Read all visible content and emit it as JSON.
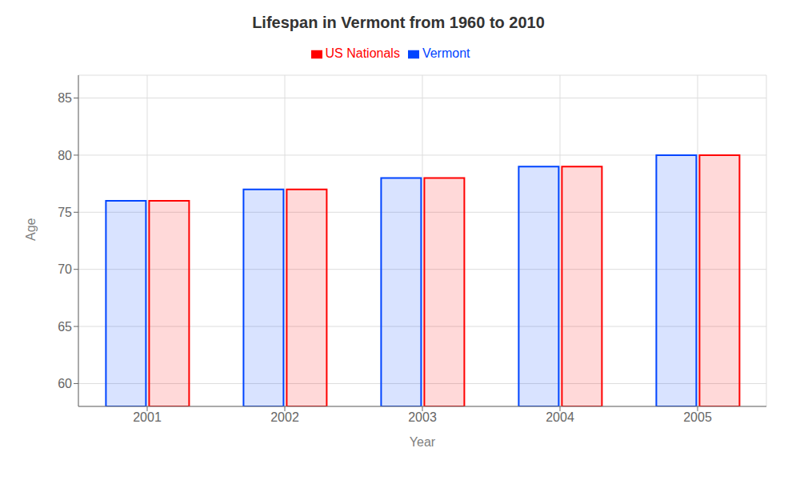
{
  "chart_data": {
    "type": "bar",
    "title": "Lifespan in Vermont from 1960 to 2010",
    "x_label": "Year",
    "y_label": "Age",
    "categories": [
      "2001",
      "2002",
      "2003",
      "2004",
      "2005"
    ],
    "series": [
      {
        "name": "Vermont",
        "color": "#0044ff",
        "values": [
          76,
          77,
          78,
          79,
          80
        ]
      },
      {
        "name": "US Nationals",
        "color": "#ff0000",
        "values": [
          76,
          77,
          78,
          79,
          80
        ]
      }
    ],
    "ylim": [
      58,
      87
    ],
    "yticks": [
      60,
      65,
      70,
      75,
      80,
      85
    ],
    "grid": true,
    "legend": "top"
  }
}
